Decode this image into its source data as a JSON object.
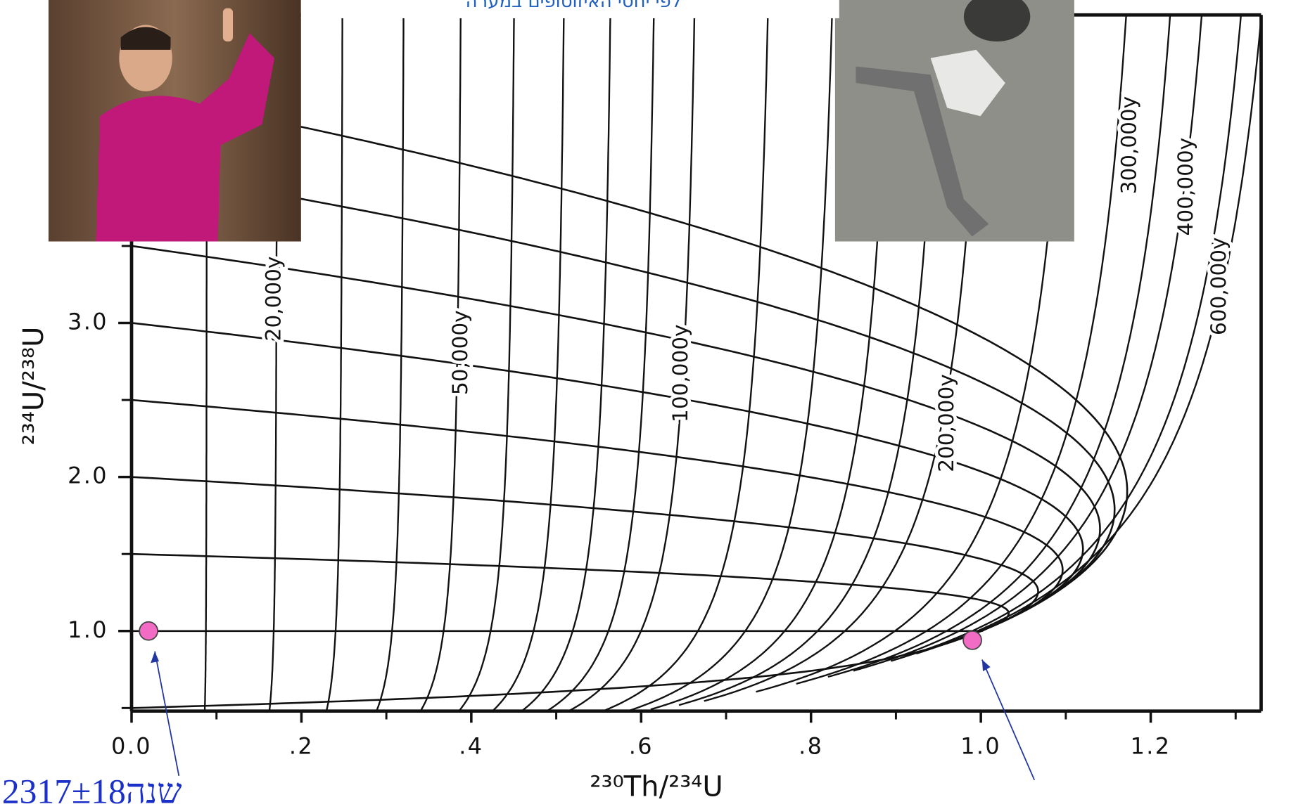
{
  "banner": "לפי יחסי האיזוטופים במערה",
  "chart_data": {
    "type": "isochron",
    "x_label": "²³⁰Th/²³⁴U",
    "y_label": "²³⁴U/²³⁸U",
    "xlim": [
      0,
      1.33
    ],
    "ylim": [
      0.48,
      5.0
    ],
    "xticks": [
      {
        "value": 0,
        "label": "0.0"
      },
      {
        "value": 0.2,
        "label": ".2"
      },
      {
        "value": 0.4,
        "label": ".4"
      },
      {
        "value": 0.6,
        "label": ".6"
      },
      {
        "value": 0.8,
        "label": ".8"
      },
      {
        "value": 1.0,
        "label": "1.0"
      },
      {
        "value": 1.2,
        "label": "1.2"
      }
    ],
    "xminor": [
      0.1,
      0.3,
      0.5,
      0.7,
      0.9,
      1.1,
      1.3
    ],
    "yticks": [
      {
        "value": 1.0,
        "label": "1.0"
      },
      {
        "value": 2.0,
        "label": "2.0"
      },
      {
        "value": 3.0,
        "label": "3.0"
      }
    ],
    "yminor": [
      0.5,
      1.5,
      2.5,
      3.5,
      4,
      4.5
    ],
    "isochrons": [
      10000,
      {
        "value": 20000,
        "label": "20,000y"
      },
      30000,
      40000,
      {
        "value": 50000,
        "label": "50,000y"
      },
      60000,
      70000,
      80000,
      90000,
      {
        "value": 100000,
        "label": "100,000y"
      },
      120000,
      140000,
      160000,
      180000,
      {
        "value": 200000,
        "label": "200,000y"
      },
      250000,
      {
        "value": 300000,
        "label": "300,000y"
      },
      350000,
      {
        "value": 400000,
        "label": "400,000y"
      },
      500000,
      {
        "value": 600000,
        "label": "600,000y"
      }
    ],
    "points": [
      {
        "x": 0.02,
        "y": 1.0
      },
      {
        "x": 0.99,
        "y": 0.94
      }
    ],
    "point_color": "#f26bc4",
    "annotation": "2317±18שנה"
  }
}
